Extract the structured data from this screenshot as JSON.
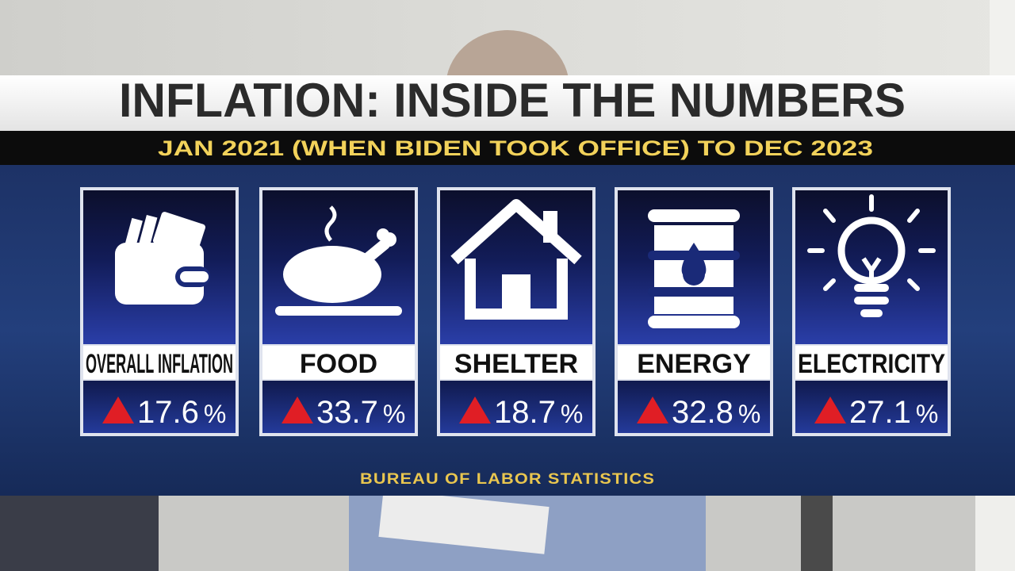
{
  "header": {
    "title": "INFLATION: INSIDE THE NUMBERS",
    "subtitle": "JAN 2021 (WHEN BIDEN TOOK OFFICE) TO DEC 2023"
  },
  "cards": [
    {
      "label": "OVERALL INFLATION",
      "value": "17.6",
      "unit": "%"
    },
    {
      "label": "FOOD",
      "value": "33.7",
      "unit": "%"
    },
    {
      "label": "SHELTER",
      "value": "18.7",
      "unit": "%"
    },
    {
      "label": "ENERGY",
      "value": "32.8",
      "unit": "%"
    },
    {
      "label": "ELECTRICITY",
      "value": "27.1",
      "unit": "%"
    }
  ],
  "source": "BUREAU OF LABOR STATISTICS"
}
